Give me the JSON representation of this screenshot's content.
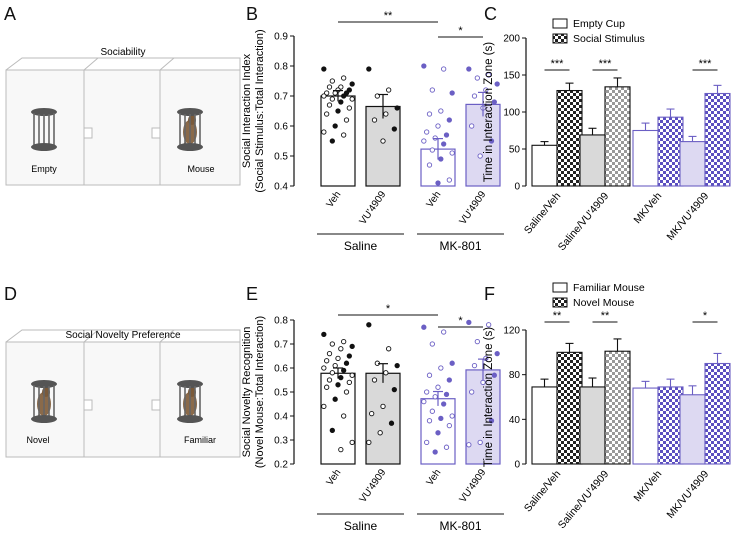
{
  "colors": {
    "black": "#111111",
    "gray": "#d9d9d9",
    "purple": "#6b5fc4",
    "lavender": "#ddd9f2",
    "hatch": "#222222"
  },
  "panels": {
    "A": {
      "letter": "A",
      "title": "Sociability",
      "left_label": "Empty",
      "right_label": "Mouse"
    },
    "D": {
      "letter": "D",
      "title": "Social Novelty Preference",
      "left_label": "Novel",
      "right_label": "Familiar"
    },
    "B": {
      "letter": "B"
    },
    "C": {
      "letter": "C"
    },
    "E": {
      "letter": "E"
    },
    "F": {
      "letter": "F"
    }
  },
  "chart_data": [
    {
      "id": "B",
      "type": "bar",
      "ylabel_line1": "Social Interaction Index",
      "ylabel_line2": "(Social Stimulus:Total Interaction)",
      "categories": [
        "Veh",
        "VU'4909",
        "Veh",
        "VU'4909"
      ],
      "groups": [
        {
          "label": "Saline",
          "indices": [
            0,
            1
          ]
        },
        {
          "label": "MK-801",
          "indices": [
            2,
            3
          ]
        }
      ],
      "values": [
        0.7,
        0.665,
        0.523,
        0.672
      ],
      "errors": [
        0.018,
        0.04,
        0.035,
        0.04
      ],
      "ylim": [
        0.4,
        0.9
      ],
      "ticks": [
        0.4,
        0.5,
        0.6,
        0.7,
        0.8,
        0.9
      ],
      "tick_labels": [
        "0.4",
        "0.5",
        "0.6",
        "0.7",
        "0.8",
        "0.9"
      ],
      "points": [
        [
          0.79,
          0.76,
          0.75,
          0.74,
          0.73,
          0.73,
          0.72,
          0.72,
          0.71,
          0.71,
          0.71,
          0.7,
          0.7,
          0.69,
          0.69,
          0.68,
          0.67,
          0.66,
          0.65,
          0.64,
          0.62,
          0.6,
          0.58,
          0.57,
          0.55
        ],
        [
          0.79,
          0.72,
          0.7,
          0.66,
          0.64,
          0.62,
          0.59,
          0.55
        ],
        [
          0.8,
          0.79,
          0.72,
          0.71,
          0.65,
          0.64,
          0.62,
          0.6,
          0.58,
          0.57,
          0.56,
          0.55,
          0.54,
          0.52,
          0.51,
          0.49,
          0.47,
          0.42,
          0.41
        ],
        [
          0.79,
          0.77,
          0.76,
          0.74,
          0.72,
          0.7,
          0.68,
          0.66,
          0.6,
          0.55,
          0.5
        ]
      ],
      "significance": [
        {
          "from": 0,
          "to": 2,
          "label": "**"
        },
        {
          "from": 2,
          "to": 3,
          "label": "*"
        }
      ]
    },
    {
      "id": "C",
      "type": "bar",
      "ylabel_line1": "Time in Interaction Zone (s)",
      "categories": [
        "Saline/Veh",
        "Saline/VU'4909",
        "MK/Veh",
        "MK/VU'4909"
      ],
      "legend": [
        "Empty Cup",
        "Social Stimulus"
      ],
      "series": [
        {
          "name": "Empty Cup",
          "values": [
            55,
            69,
            75,
            60
          ],
          "errors": [
            5,
            9,
            10,
            7
          ]
        },
        {
          "name": "Social Stimulus",
          "values": [
            129,
            134,
            93,
            125
          ],
          "errors": [
            10,
            12,
            11,
            11
          ]
        }
      ],
      "ylim": [
        0,
        200
      ],
      "ticks": [
        0,
        50,
        100,
        150,
        200
      ],
      "tick_labels": [
        "0",
        "50",
        "100",
        "150",
        "200"
      ],
      "significance": [
        {
          "group": 0,
          "label": "***"
        },
        {
          "group": 1,
          "label": "***"
        },
        {
          "group": 3,
          "label": "***"
        }
      ]
    },
    {
      "id": "E",
      "type": "bar",
      "ylabel_line1": "Social Novelty Recognition",
      "ylabel_line2": "(Novel Mouse:Total Interaction)",
      "categories": [
        "Veh",
        "VU'4909",
        "Veh",
        "VU'4909"
      ],
      "groups": [
        {
          "label": "Saline",
          "indices": [
            0,
            1
          ]
        },
        {
          "label": "MK-801",
          "indices": [
            2,
            3
          ]
        }
      ],
      "values": [
        0.578,
        0.578,
        0.472,
        0.592
      ],
      "errors": [
        0.022,
        0.04,
        0.03,
        0.045
      ],
      "ylim": [
        0.2,
        0.8
      ],
      "ticks": [
        0.2,
        0.3,
        0.4,
        0.5,
        0.6,
        0.7,
        0.8
      ],
      "tick_labels": [
        "0.2",
        "0.3",
        "0.4",
        "0.5",
        "0.6",
        "0.7",
        "0.8"
      ],
      "points": [
        [
          0.74,
          0.71,
          0.7,
          0.69,
          0.68,
          0.66,
          0.65,
          0.64,
          0.63,
          0.62,
          0.61,
          0.6,
          0.59,
          0.58,
          0.57,
          0.56,
          0.55,
          0.54,
          0.53,
          0.52,
          0.5,
          0.47,
          0.44,
          0.4,
          0.34,
          0.29,
          0.26
        ],
        [
          0.78,
          0.68,
          0.62,
          0.61,
          0.58,
          0.55,
          0.51,
          0.44,
          0.41,
          0.37,
          0.33,
          0.29
        ],
        [
          0.77,
          0.75,
          0.7,
          0.62,
          0.6,
          0.57,
          0.55,
          0.52,
          0.5,
          0.49,
          0.48,
          0.46,
          0.45,
          0.42,
          0.4,
          0.39,
          0.38,
          0.36,
          0.33,
          0.29,
          0.27,
          0.25
        ],
        [
          0.79,
          0.78,
          0.71,
          0.66,
          0.64,
          0.61,
          0.57,
          0.54,
          0.5,
          0.38,
          0.29,
          0.28
        ]
      ],
      "significance": [
        {
          "from": 0,
          "to": 2,
          "label": "*"
        },
        {
          "from": 2,
          "to": 3,
          "label": "*"
        }
      ]
    },
    {
      "id": "F",
      "type": "bar",
      "ylabel_line1": "Time in Interaction Zone (s)",
      "categories": [
        "Saline/Veh",
        "Saline/VU'4909",
        "MK/Veh",
        "MK/VU'4909"
      ],
      "legend": [
        "Familiar  Mouse",
        "Novel Mouse"
      ],
      "series": [
        {
          "name": "Familiar  Mouse",
          "values": [
            69,
            69,
            68,
            62
          ],
          "errors": [
            7,
            8,
            6,
            8
          ]
        },
        {
          "name": "Novel Mouse",
          "values": [
            100,
            101,
            69,
            90
          ],
          "errors": [
            8,
            11,
            7,
            9
          ]
        }
      ],
      "ylim": [
        0,
        120
      ],
      "ticks": [
        0,
        40,
        80,
        120
      ],
      "tick_labels": [
        "0",
        "40",
        "80",
        "120"
      ],
      "significance": [
        {
          "group": 0,
          "label": "**"
        },
        {
          "group": 1,
          "label": "**"
        },
        {
          "group": 3,
          "label": "*"
        }
      ]
    }
  ]
}
